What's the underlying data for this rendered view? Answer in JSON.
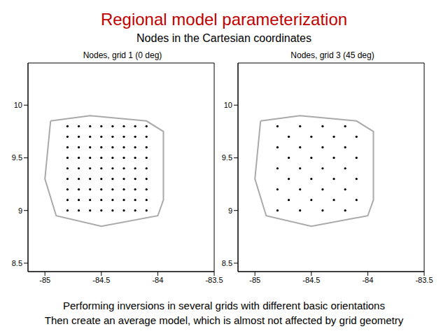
{
  "slide": {
    "title": "Regional model parameterization",
    "subtitle": "Nodes in the Cartesian coordinates",
    "footer": [
      "Performing inversions in several grids with different basic orientations",
      "Then create an average model, which is almost not affected by grid geometry"
    ]
  },
  "chart_data": [
    {
      "type": "scatter",
      "title": "Nodes, grid 1 (0 deg)",
      "xlim": [
        -85.15,
        -83.5
      ],
      "ylim": [
        8.42,
        10.4
      ],
      "xticks": [
        -85,
        -84.5,
        -84,
        -83.5
      ],
      "yticks": [
        8.5,
        9,
        9.5,
        10
      ],
      "color": "#000000",
      "marker": "dot",
      "x": [
        -84.8,
        -84.7,
        -84.6,
        -84.5,
        -84.4,
        -84.3,
        -84.2,
        -84.1,
        -84.8,
        -84.7,
        -84.6,
        -84.5,
        -84.4,
        -84.3,
        -84.2,
        -84.1,
        -84.8,
        -84.7,
        -84.6,
        -84.5,
        -84.4,
        -84.3,
        -84.2,
        -84.1,
        -84.8,
        -84.7,
        -84.6,
        -84.5,
        -84.4,
        -84.3,
        -84.2,
        -84.1,
        -84.8,
        -84.7,
        -84.6,
        -84.5,
        -84.4,
        -84.3,
        -84.2,
        -84.1,
        -84.8,
        -84.7,
        -84.6,
        -84.5,
        -84.4,
        -84.3,
        -84.2,
        -84.1,
        -84.8,
        -84.7,
        -84.6,
        -84.5,
        -84.4,
        -84.3,
        -84.2,
        -84.1,
        -84.8,
        -84.7,
        -84.6,
        -84.5,
        -84.4,
        -84.3,
        -84.2,
        -84.1,
        -84.8,
        -84.7,
        -84.6,
        -84.5,
        -84.4,
        -84.3,
        -84.2,
        -84.1
      ],
      "y": [
        9,
        9,
        9,
        9,
        9,
        9,
        9,
        9,
        9.1,
        9.1,
        9.1,
        9.1,
        9.1,
        9.1,
        9.1,
        9.1,
        9.2,
        9.2,
        9.2,
        9.2,
        9.2,
        9.2,
        9.2,
        9.2,
        9.3,
        9.3,
        9.3,
        9.3,
        9.3,
        9.3,
        9.3,
        9.3,
        9.4,
        9.4,
        9.4,
        9.4,
        9.4,
        9.4,
        9.4,
        9.4,
        9.5,
        9.5,
        9.5,
        9.5,
        9.5,
        9.5,
        9.5,
        9.5,
        9.6,
        9.6,
        9.6,
        9.6,
        9.6,
        9.6,
        9.6,
        9.6,
        9.7,
        9.7,
        9.7,
        9.7,
        9.7,
        9.7,
        9.7,
        9.7,
        9.8,
        9.8,
        9.8,
        9.8,
        9.8,
        9.8,
        9.8,
        9.8
      ],
      "coverage": {
        "color": "#aaaaaa",
        "x": [
          -84.95,
          -84.6,
          -84.1,
          -83.95,
          -83.95,
          -84.0,
          -84.5,
          -84.9,
          -85.0,
          -84.95
        ],
        "y": [
          9.85,
          9.9,
          9.85,
          9.75,
          9.1,
          8.95,
          8.85,
          8.95,
          9.3,
          9.85
        ]
      }
    },
    {
      "type": "scatter",
      "title": "Nodes, grid 3 (45 deg)",
      "xlim": [
        -85.15,
        -83.5
      ],
      "ylim": [
        8.42,
        10.4
      ],
      "xticks": [
        -85,
        -84.5,
        -84,
        -83.5
      ],
      "yticks": [
        8.5,
        9,
        9.5,
        10
      ],
      "color": "#000000",
      "marker": "dot",
      "x": [
        -84.8,
        -84.6,
        -84.4,
        -84.2,
        -84.7,
        -84.5,
        -84.3,
        -84.1,
        -84.8,
        -84.6,
        -84.4,
        -84.2,
        -84.7,
        -84.5,
        -84.3,
        -84.1,
        -84.8,
        -84.6,
        -84.4,
        -84.2,
        -84.7,
        -84.5,
        -84.3,
        -84.1,
        -84.8,
        -84.6,
        -84.4,
        -84.2,
        -84.7,
        -84.5,
        -84.3,
        -84.1,
        -84.8,
        -84.6,
        -84.4,
        -84.2
      ],
      "y": [
        9,
        9,
        9,
        9,
        9.1,
        9.1,
        9.1,
        9.1,
        9.2,
        9.2,
        9.2,
        9.2,
        9.3,
        9.3,
        9.3,
        9.3,
        9.4,
        9.4,
        9.4,
        9.4,
        9.5,
        9.5,
        9.5,
        9.5,
        9.6,
        9.6,
        9.6,
        9.6,
        9.7,
        9.7,
        9.7,
        9.7,
        9.8,
        9.8,
        9.8,
        9.8
      ],
      "coverage": {
        "color": "#aaaaaa",
        "x": [
          -84.95,
          -84.6,
          -84.1,
          -83.95,
          -83.95,
          -84.0,
          -84.5,
          -84.9,
          -85.0,
          -84.95
        ],
        "y": [
          9.85,
          9.9,
          9.85,
          9.75,
          9.1,
          8.95,
          8.85,
          8.95,
          9.3,
          9.85
        ]
      }
    }
  ]
}
